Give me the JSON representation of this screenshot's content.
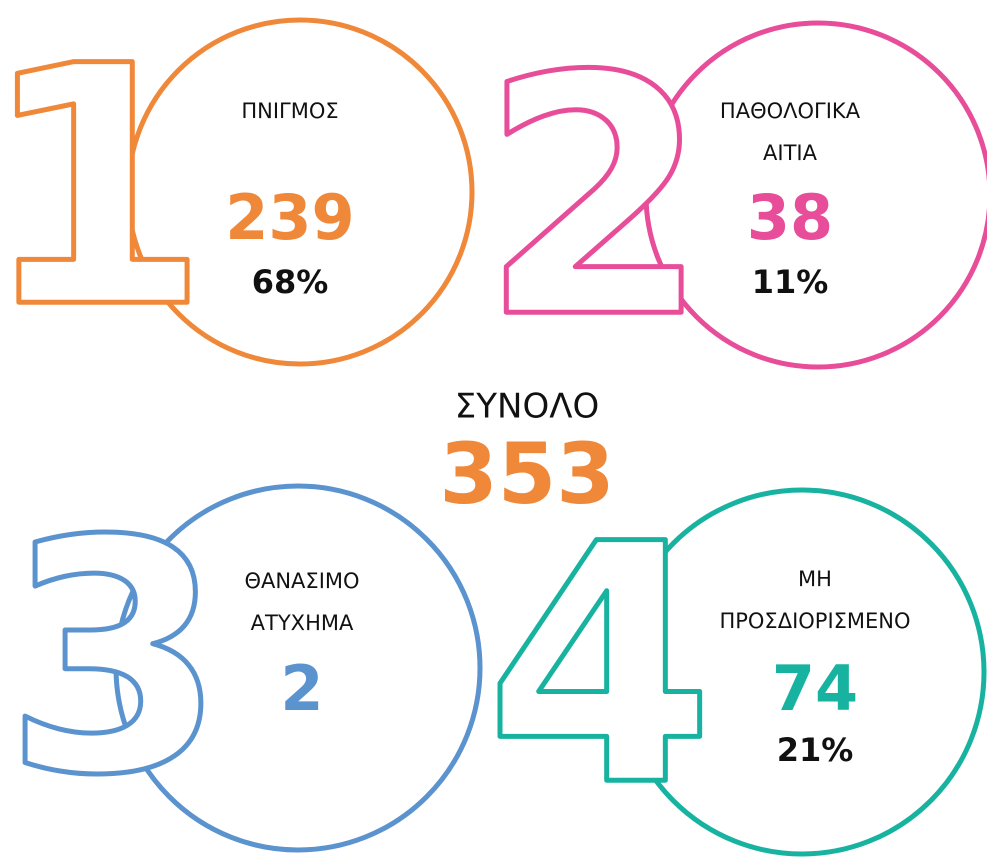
{
  "total": {
    "label": "ΣΥΝΟΛΟ",
    "value": "353",
    "color": "#f0883a"
  },
  "items": [
    {
      "digit": "1",
      "color": "#f0883a",
      "label": [
        "ΠΝΙΓΜΟΣ"
      ],
      "value": "239",
      "percent": "68%"
    },
    {
      "digit": "2",
      "color": "#e84d9a",
      "label": [
        "ΠΑΘΟΛΟΓΙΚΑ",
        "ΑΙΤΙΑ"
      ],
      "value": "38",
      "percent": "11%"
    },
    {
      "digit": "3",
      "color": "#5b93cf",
      "label": [
        "ΘΑΝΑΣΙΜΟ",
        "ΑΤΥΧΗΜΑ"
      ],
      "value": "2"
    },
    {
      "digit": "4",
      "color": "#17b3a0",
      "label": [
        "ΜΗ",
        "ΠΡΟΣΔΙΟΡΙΣΜΕΝΟ"
      ],
      "value": "74",
      "percent": "21%"
    }
  ]
}
